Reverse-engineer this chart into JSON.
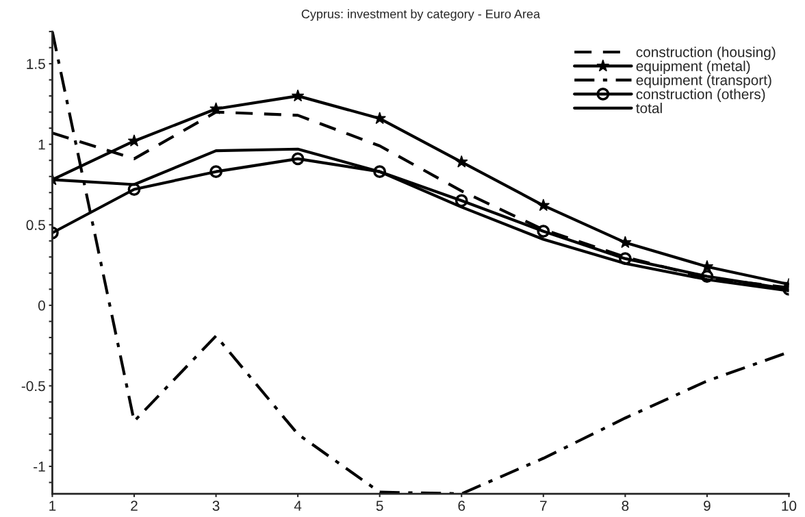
{
  "chart_data": {
    "type": "line",
    "title": "Cyprus: investment by category - Euro Area",
    "x": [
      1,
      2,
      3,
      4,
      5,
      6,
      7,
      8,
      9,
      10
    ],
    "xlim": [
      1,
      10
    ],
    "xticks": [
      1,
      2,
      3,
      4,
      5,
      6,
      7,
      8,
      9,
      10
    ],
    "ylim": [
      -1.17,
      1.7
    ],
    "yticks": [
      {
        "value": -1.1,
        "label": null
      },
      -1,
      {
        "value": -0.9,
        "label": null
      },
      {
        "value": -0.8,
        "label": null
      },
      {
        "value": -0.7,
        "label": null
      },
      {
        "value": -0.6,
        "label": null
      },
      -0.5,
      {
        "value": -0.4,
        "label": null
      },
      {
        "value": -0.3,
        "label": null
      },
      {
        "value": -0.2,
        "label": null
      },
      {
        "value": -0.1,
        "label": null
      },
      0,
      {
        "value": 0.1,
        "label": null
      },
      {
        "value": 0.2,
        "label": null
      },
      {
        "value": 0.3,
        "label": null
      },
      {
        "value": 0.4,
        "label": null
      },
      0.5,
      {
        "value": 0.6,
        "label": null
      },
      {
        "value": 0.7,
        "label": null
      },
      {
        "value": 0.8,
        "label": null
      },
      {
        "value": 0.9,
        "label": null
      },
      1,
      {
        "value": 1.1,
        "label": null
      },
      {
        "value": 1.2,
        "label": null
      },
      {
        "value": 1.3,
        "label": null
      },
      {
        "value": 1.4,
        "label": null
      },
      1.5,
      {
        "value": 1.6,
        "label": null
      },
      {
        "value": 1.7,
        "label": null
      }
    ],
    "grid": false,
    "legend": "top right",
    "series": [
      {
        "name": "construction (housing)",
        "color": "#000000",
        "line_style": "dashed",
        "marker": "none",
        "values": [
          1.07,
          0.91,
          1.2,
          1.18,
          0.99,
          0.71,
          0.47,
          0.3,
          0.17,
          0.11
        ]
      },
      {
        "name": "equipment (metal)",
        "color": "#000000",
        "line_style": "solid",
        "marker": "star",
        "values": [
          0.78,
          1.02,
          1.22,
          1.3,
          1.16,
          0.89,
          0.62,
          0.39,
          0.24,
          0.13
        ]
      },
      {
        "name": "equipment (transport)",
        "color": "#000000",
        "line_style": "dashdot",
        "marker": "none",
        "values": [
          1.7,
          -0.72,
          -0.19,
          -0.8,
          -1.16,
          -1.17,
          -0.95,
          -0.7,
          -0.47,
          -0.29
        ]
      },
      {
        "name": "construction (others)",
        "color": "#000000",
        "line_style": "solid",
        "marker": "circle",
        "values": [
          0.45,
          0.72,
          0.83,
          0.91,
          0.83,
          0.65,
          0.46,
          0.29,
          0.18,
          0.1
        ]
      },
      {
        "name": "total",
        "color": "#000000",
        "line_style": "solid",
        "marker": "none",
        "values": [
          0.78,
          0.75,
          0.96,
          0.97,
          0.83,
          0.61,
          0.41,
          0.26,
          0.16,
          0.09
        ]
      }
    ]
  }
}
